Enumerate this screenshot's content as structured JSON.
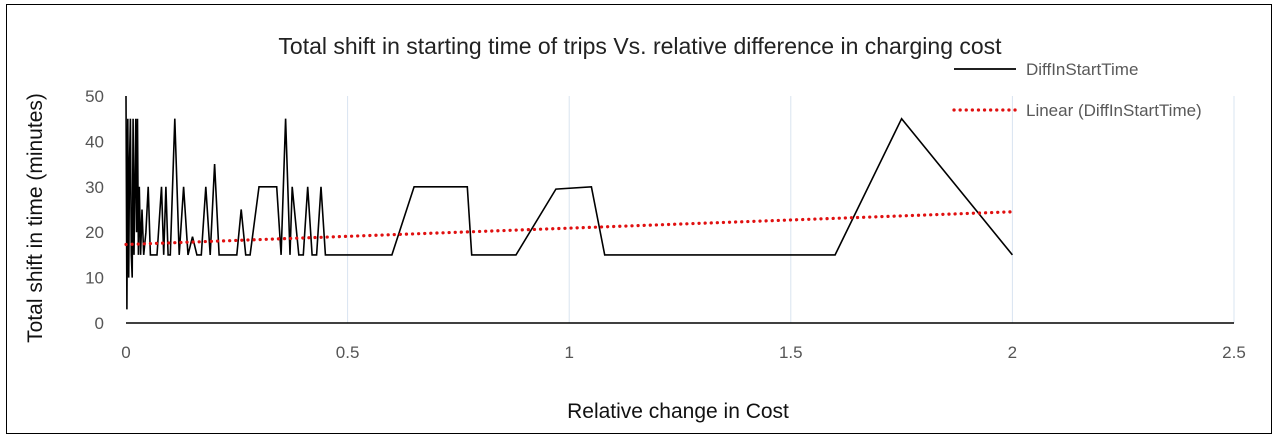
{
  "chart_data": {
    "type": "line",
    "title": "Total shift in starting time of trips Vs. relative difference in charging cost",
    "xlabel": "Relative change in Cost",
    "ylabel": "Total shift in time (minutes)",
    "xlim": [
      0,
      2.5
    ],
    "ylim": [
      0,
      50
    ],
    "x_ticks": [
      "0",
      "0.5",
      "1",
      "1.5",
      "2",
      "2.5"
    ],
    "y_ticks": [
      "0",
      "10",
      "20",
      "30",
      "40",
      "50"
    ],
    "grid": "vertical",
    "legend_position": "top-right",
    "series": [
      {
        "name": "DiffInStartTime",
        "color": "#000000",
        "style": "solid",
        "x": [
          0,
          0.002,
          0.004,
          0.006,
          0.008,
          0.01,
          0.012,
          0.014,
          0.016,
          0.018,
          0.02,
          0.022,
          0.024,
          0.026,
          0.028,
          0.03,
          0.033,
          0.036,
          0.04,
          0.045,
          0.05,
          0.055,
          0.06,
          0.07,
          0.08,
          0.085,
          0.09,
          0.095,
          0.1,
          0.11,
          0.12,
          0.13,
          0.14,
          0.15,
          0.16,
          0.17,
          0.18,
          0.19,
          0.2,
          0.21,
          0.22,
          0.23,
          0.24,
          0.25,
          0.26,
          0.27,
          0.28,
          0.3,
          0.32,
          0.34,
          0.35,
          0.36,
          0.37,
          0.375,
          0.39,
          0.4,
          0.41,
          0.42,
          0.43,
          0.44,
          0.45,
          0.5,
          0.6,
          0.65,
          0.77,
          0.78,
          0.88,
          0.97,
          1.05,
          1.08,
          1.6,
          1.75,
          2.0
        ],
        "y": [
          50,
          3,
          45,
          10,
          35,
          45,
          15,
          10,
          45,
          15,
          30,
          45,
          20,
          45,
          15,
          30,
          15,
          25,
          15,
          20,
          30,
          15,
          15,
          15,
          30,
          15,
          30,
          15,
          15,
          45,
          15,
          30,
          15,
          19,
          15,
          15,
          30,
          15,
          35,
          15,
          15,
          15,
          15,
          15,
          25,
          15,
          15,
          30,
          30,
          30,
          15,
          45,
          15,
          30,
          15,
          15,
          30,
          15,
          15,
          30,
          15,
          15,
          15,
          30,
          30,
          15,
          15,
          29.5,
          30,
          15,
          15,
          45,
          15
        ]
      },
      {
        "name": "Linear (DiffInStartTime)",
        "color": "#e01010",
        "style": "dotted",
        "x": [
          0,
          2.0
        ],
        "y": [
          17.3,
          24.5
        ]
      }
    ]
  }
}
